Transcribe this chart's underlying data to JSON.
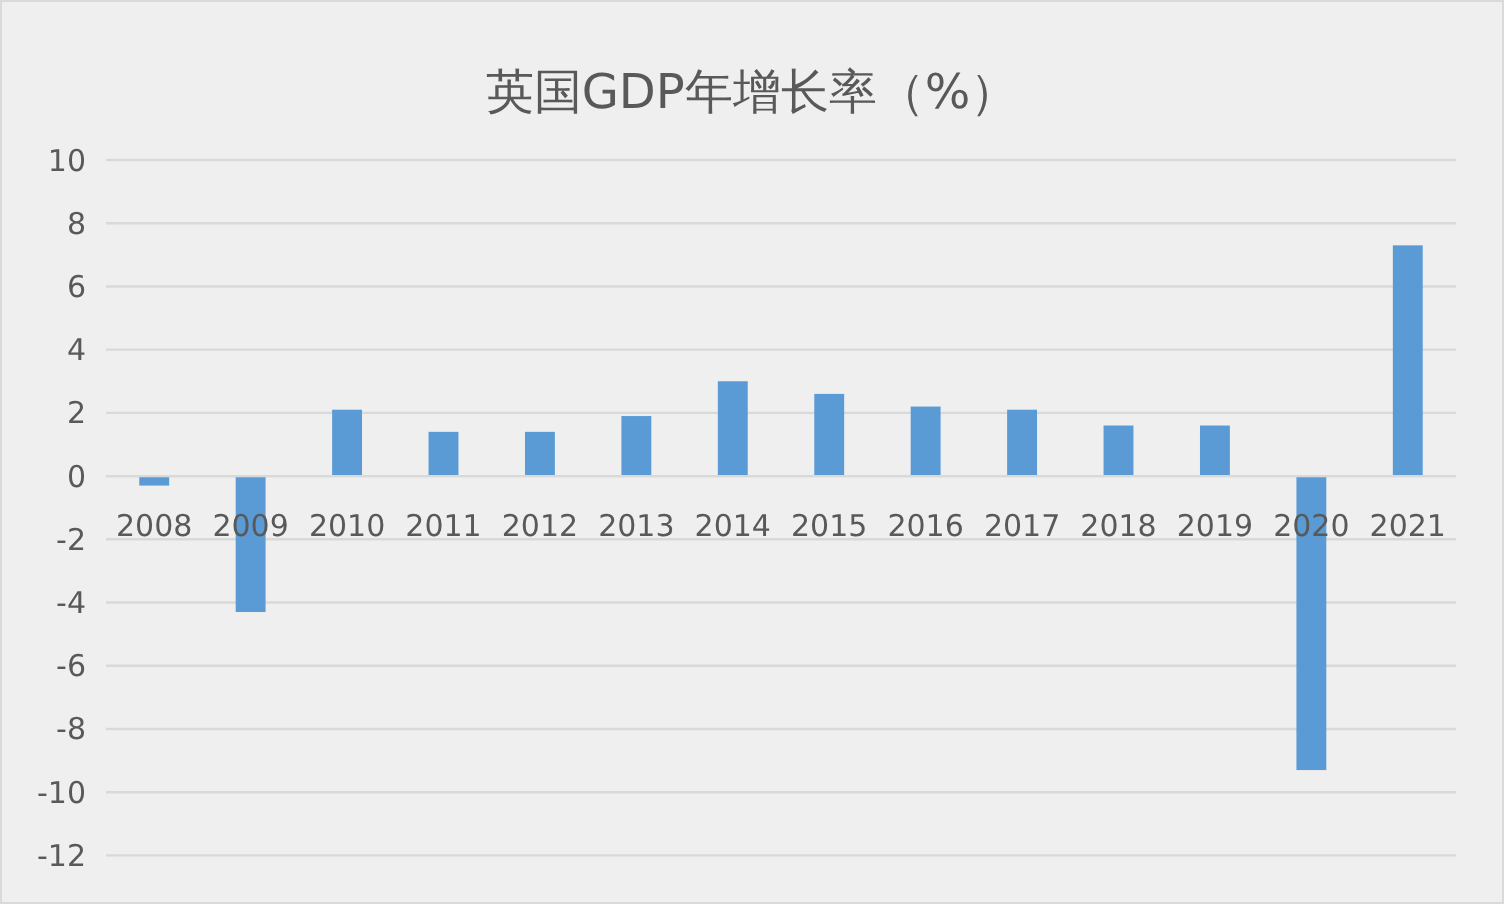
{
  "chart_data": {
    "type": "bar",
    "title": "英国GDP年增长率（%）",
    "categories": [
      "2008",
      "2009",
      "2010",
      "2011",
      "2012",
      "2013",
      "2014",
      "2015",
      "2016",
      "2017",
      "2018",
      "2019",
      "2020",
      "2021"
    ],
    "values": [
      -0.3,
      -4.3,
      2.1,
      1.4,
      1.4,
      1.9,
      3.0,
      2.6,
      2.2,
      2.1,
      1.6,
      1.6,
      -9.3,
      7.3
    ],
    "color": "#5b9bd5",
    "ylim": [
      -12,
      10
    ],
    "yticks": [
      -12,
      -10,
      -8,
      -6,
      -4,
      -2,
      0,
      2,
      4,
      6,
      8,
      10
    ],
    "grid": "y"
  }
}
